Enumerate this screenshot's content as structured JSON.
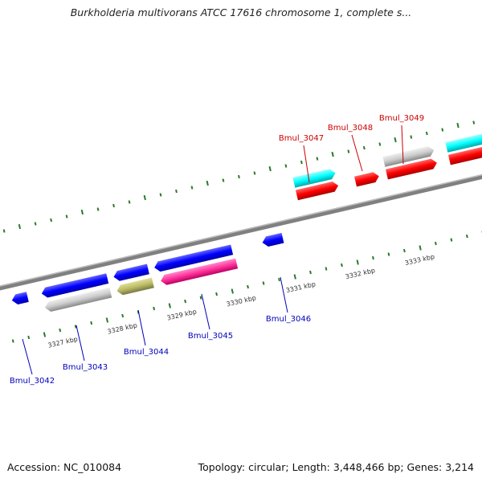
{
  "title": "Burkholderia multivorans ATCC 17616 chromosome 1, complete s...",
  "footer": {
    "accession": "Accession: NC_010084",
    "stats": "Topology: circular; Length: 3,448,466 bp; Genes: 3,214"
  },
  "colors": {
    "backbone": "#808080",
    "tick": "#2a7a2a",
    "plus_label": "#cc0000",
    "minus_label": "#0000bb"
  },
  "kbp_labels": [
    "3327 kbp",
    "3328 kbp",
    "3329 kbp",
    "3330 kbp",
    "3331 kbp",
    "3332 kbp",
    "3333 kbp"
  ],
  "genes_upper": [
    {
      "name": "Bmul_3047",
      "strand": "+",
      "color": "cyan"
    },
    {
      "name": "Bmul_3048",
      "strand": "+",
      "color": "red"
    },
    {
      "name": "Bmul_3049",
      "strand": "+",
      "color": "gray"
    }
  ],
  "genes_lower": [
    {
      "name": "Bmul_3042",
      "strand": "-",
      "color": "blue"
    },
    {
      "name": "Bmul_3043",
      "strand": "-",
      "color": "gray"
    },
    {
      "name": "Bmul_3044",
      "strand": "-",
      "color": "olive"
    },
    {
      "name": "Bmul_3045",
      "strand": "-",
      "color": "magenta"
    },
    {
      "name": "Bmul_3046",
      "strand": "-",
      "color": "blue"
    }
  ]
}
